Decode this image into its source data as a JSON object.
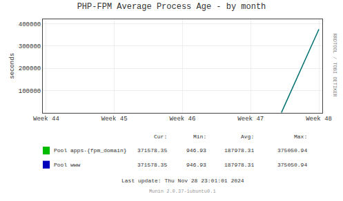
{
  "chart_data": {
    "type": "line",
    "title": "PHP-FPM Average Process Age - by month",
    "y_label": "seconds",
    "x": [
      3.45,
      4.0
    ],
    "series": [
      {
        "color": "#007070",
        "values": [
          0,
          375050.94
        ]
      }
    ],
    "xlim": [
      -0.05,
      4.05
    ],
    "xticks": [
      {
        "value": 0,
        "label": "Week 44"
      },
      {
        "value": 1,
        "label": "Week 45"
      },
      {
        "value": 2,
        "label": "Week 46"
      },
      {
        "value": 3,
        "label": "Week 47"
      },
      {
        "value": 4,
        "label": "Week 48"
      }
    ],
    "ylim": [
      0,
      420000
    ],
    "yticks": [
      100000,
      200000,
      300000,
      400000
    ],
    "grid": true,
    "annotations": [
      "RRDTOOL / TOBI OETIKER",
      "Last update: Thu Nov 28 23:01:01 2024",
      "Munin 2.0.37-1ubuntu0.1"
    ],
    "stats": {
      "header": [
        "Cur:",
        "Min:",
        "Avg:",
        "Max:"
      ],
      "rows": [
        {
          "name": "Pool apps-{fpm_domain}",
          "color": "#00bb00",
          "values": [
            371578.35,
            946.93,
            187978.31,
            375050.94
          ]
        },
        {
          "name": "Pool www",
          "color": "#0000bb",
          "values": [
            371578.35,
            946.93,
            187978.31,
            375050.94
          ]
        }
      ]
    }
  }
}
